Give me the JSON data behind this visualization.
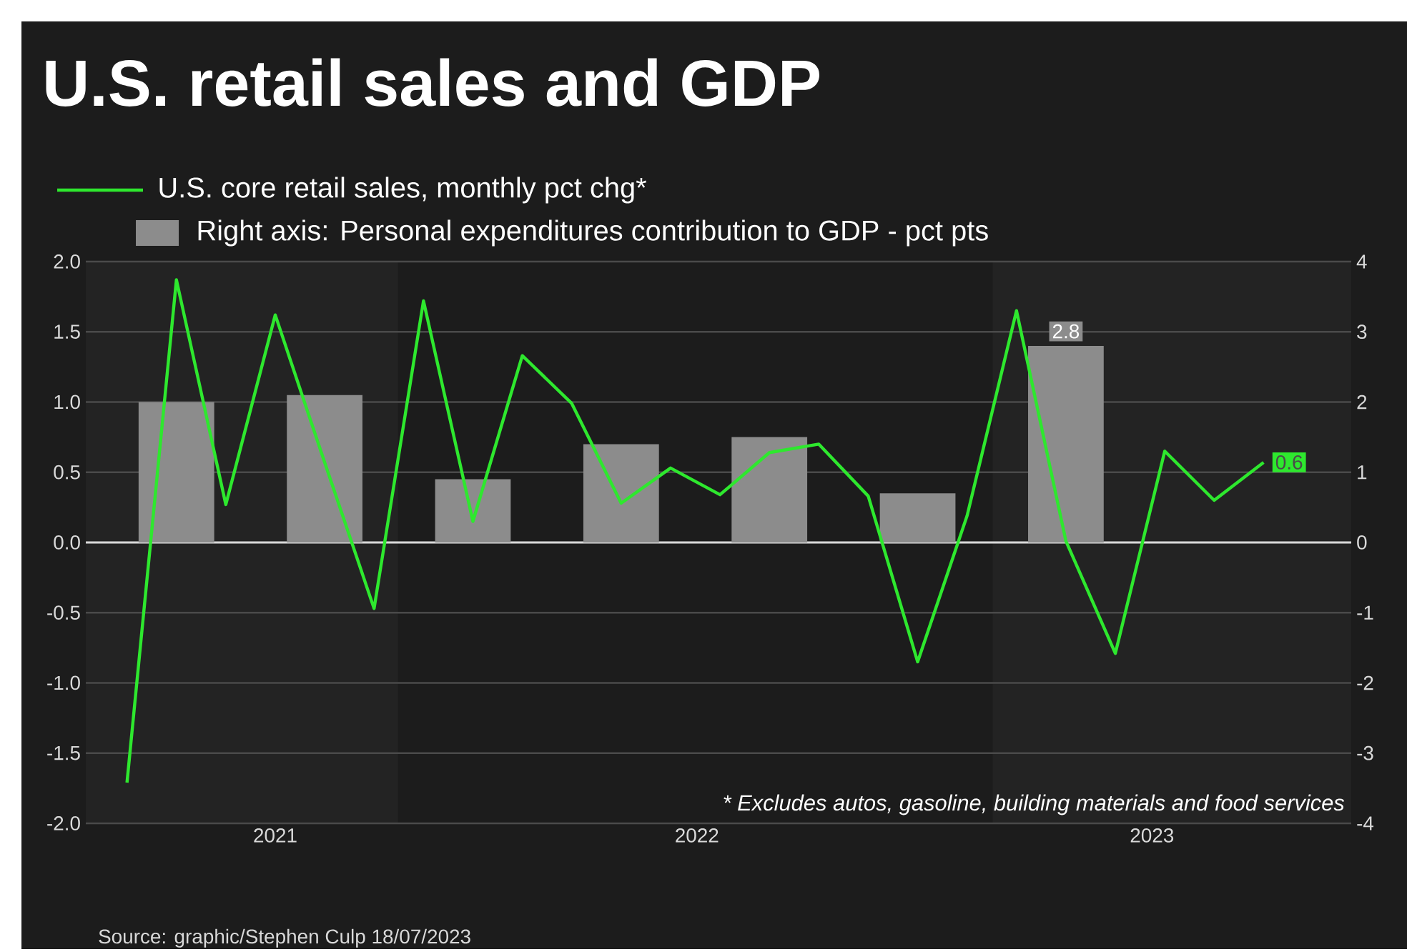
{
  "chart_data": {
    "type": "line",
    "title": "U.S. retail sales and GDP",
    "series": [
      {
        "name": "U.S. core retail sales, monthly pct chg*",
        "color": "#2ee82e",
        "x": [
          "2021-07",
          "2021-08",
          "2021-09",
          "2021-10",
          "2021-11",
          "2021-12",
          "2022-01",
          "2022-02",
          "2022-03",
          "2022-04",
          "2022-05",
          "2022-06",
          "2022-07",
          "2022-08",
          "2022-09",
          "2022-10",
          "2022-11",
          "2022-12",
          "2023-01",
          "2023-02",
          "2023-03",
          "2023-04",
          "2023-05",
          "2023-06"
        ],
        "values": [
          -1.71,
          1.87,
          0.27,
          1.62,
          0.57,
          -0.47,
          1.72,
          0.15,
          1.33,
          0.99,
          0.28,
          0.53,
          0.34,
          0.64,
          0.7,
          0.33,
          -0.85,
          0.19,
          1.65,
          0.01,
          -0.79,
          0.65,
          0.3,
          0.57
        ],
        "value_labels": [
          null,
          null,
          null,
          null,
          null,
          null,
          null,
          null,
          null,
          null,
          null,
          null,
          null,
          null,
          null,
          null,
          null,
          null,
          null,
          null,
          null,
          null,
          null,
          "0.6"
        ]
      },
      {
        "name": "Right axis: Personal expenditures contribution to GDP - pct pts",
        "type": "bar",
        "axis": "y2",
        "color": "#8c8c8c",
        "x": [
          "2021-08",
          "2021-11",
          "2022-02",
          "2022-05",
          "2022-08",
          "2022-11",
          "2023-02"
        ],
        "values": [
          2.0,
          2.1,
          0.9,
          1.4,
          1.5,
          0.7,
          2.8
        ],
        "value_labels": [
          null,
          null,
          null,
          null,
          null,
          null,
          "2.8"
        ]
      }
    ],
    "xlim": [
      "2021-06-06",
      "2023-07-25"
    ],
    "xticks": [
      {
        "value": "2021-10-01",
        "label": "2021"
      },
      {
        "value": "2022-06-17",
        "label": "2022"
      },
      {
        "value": "2023-03-24",
        "label": "2023"
      }
    ],
    "ylim": [
      -2,
      2
    ],
    "yticks": [
      {
        "value": -2,
        "label": "-2.0"
      },
      {
        "value": -1.5,
        "label": "-1.5"
      },
      {
        "value": -1,
        "label": "-1.0"
      },
      {
        "value": -0.5,
        "label": "-0.5"
      },
      {
        "value": 0,
        "label": "0.0"
      },
      {
        "value": 0.5,
        "label": "0.5"
      },
      {
        "value": 1,
        "label": "1.0"
      },
      {
        "value": 1.5,
        "label": "1.5"
      },
      {
        "value": 2,
        "label": "2.0"
      }
    ],
    "y2lim": [
      -4,
      4
    ],
    "y2ticks": [
      -4,
      -3,
      -2,
      -1,
      0,
      1,
      2,
      3,
      4
    ],
    "bands": [
      {
        "axis": "x",
        "from": "2021-06-06",
        "to": "2021-12-16",
        "color": "#232323"
      },
      {
        "axis": "x",
        "from": "2022-12-17",
        "to": "2023-07-25",
        "color": "#232323"
      }
    ],
    "ref_lines": [
      {
        "axis": "y",
        "value": 0,
        "color": "#d8d8d8"
      }
    ],
    "grid": "y",
    "legend": "top left",
    "annotations": [
      "* Excludes autos, gasoline, building materials and food services",
      "Source: graphic/Stephen Culp 18/07/2023"
    ]
  }
}
